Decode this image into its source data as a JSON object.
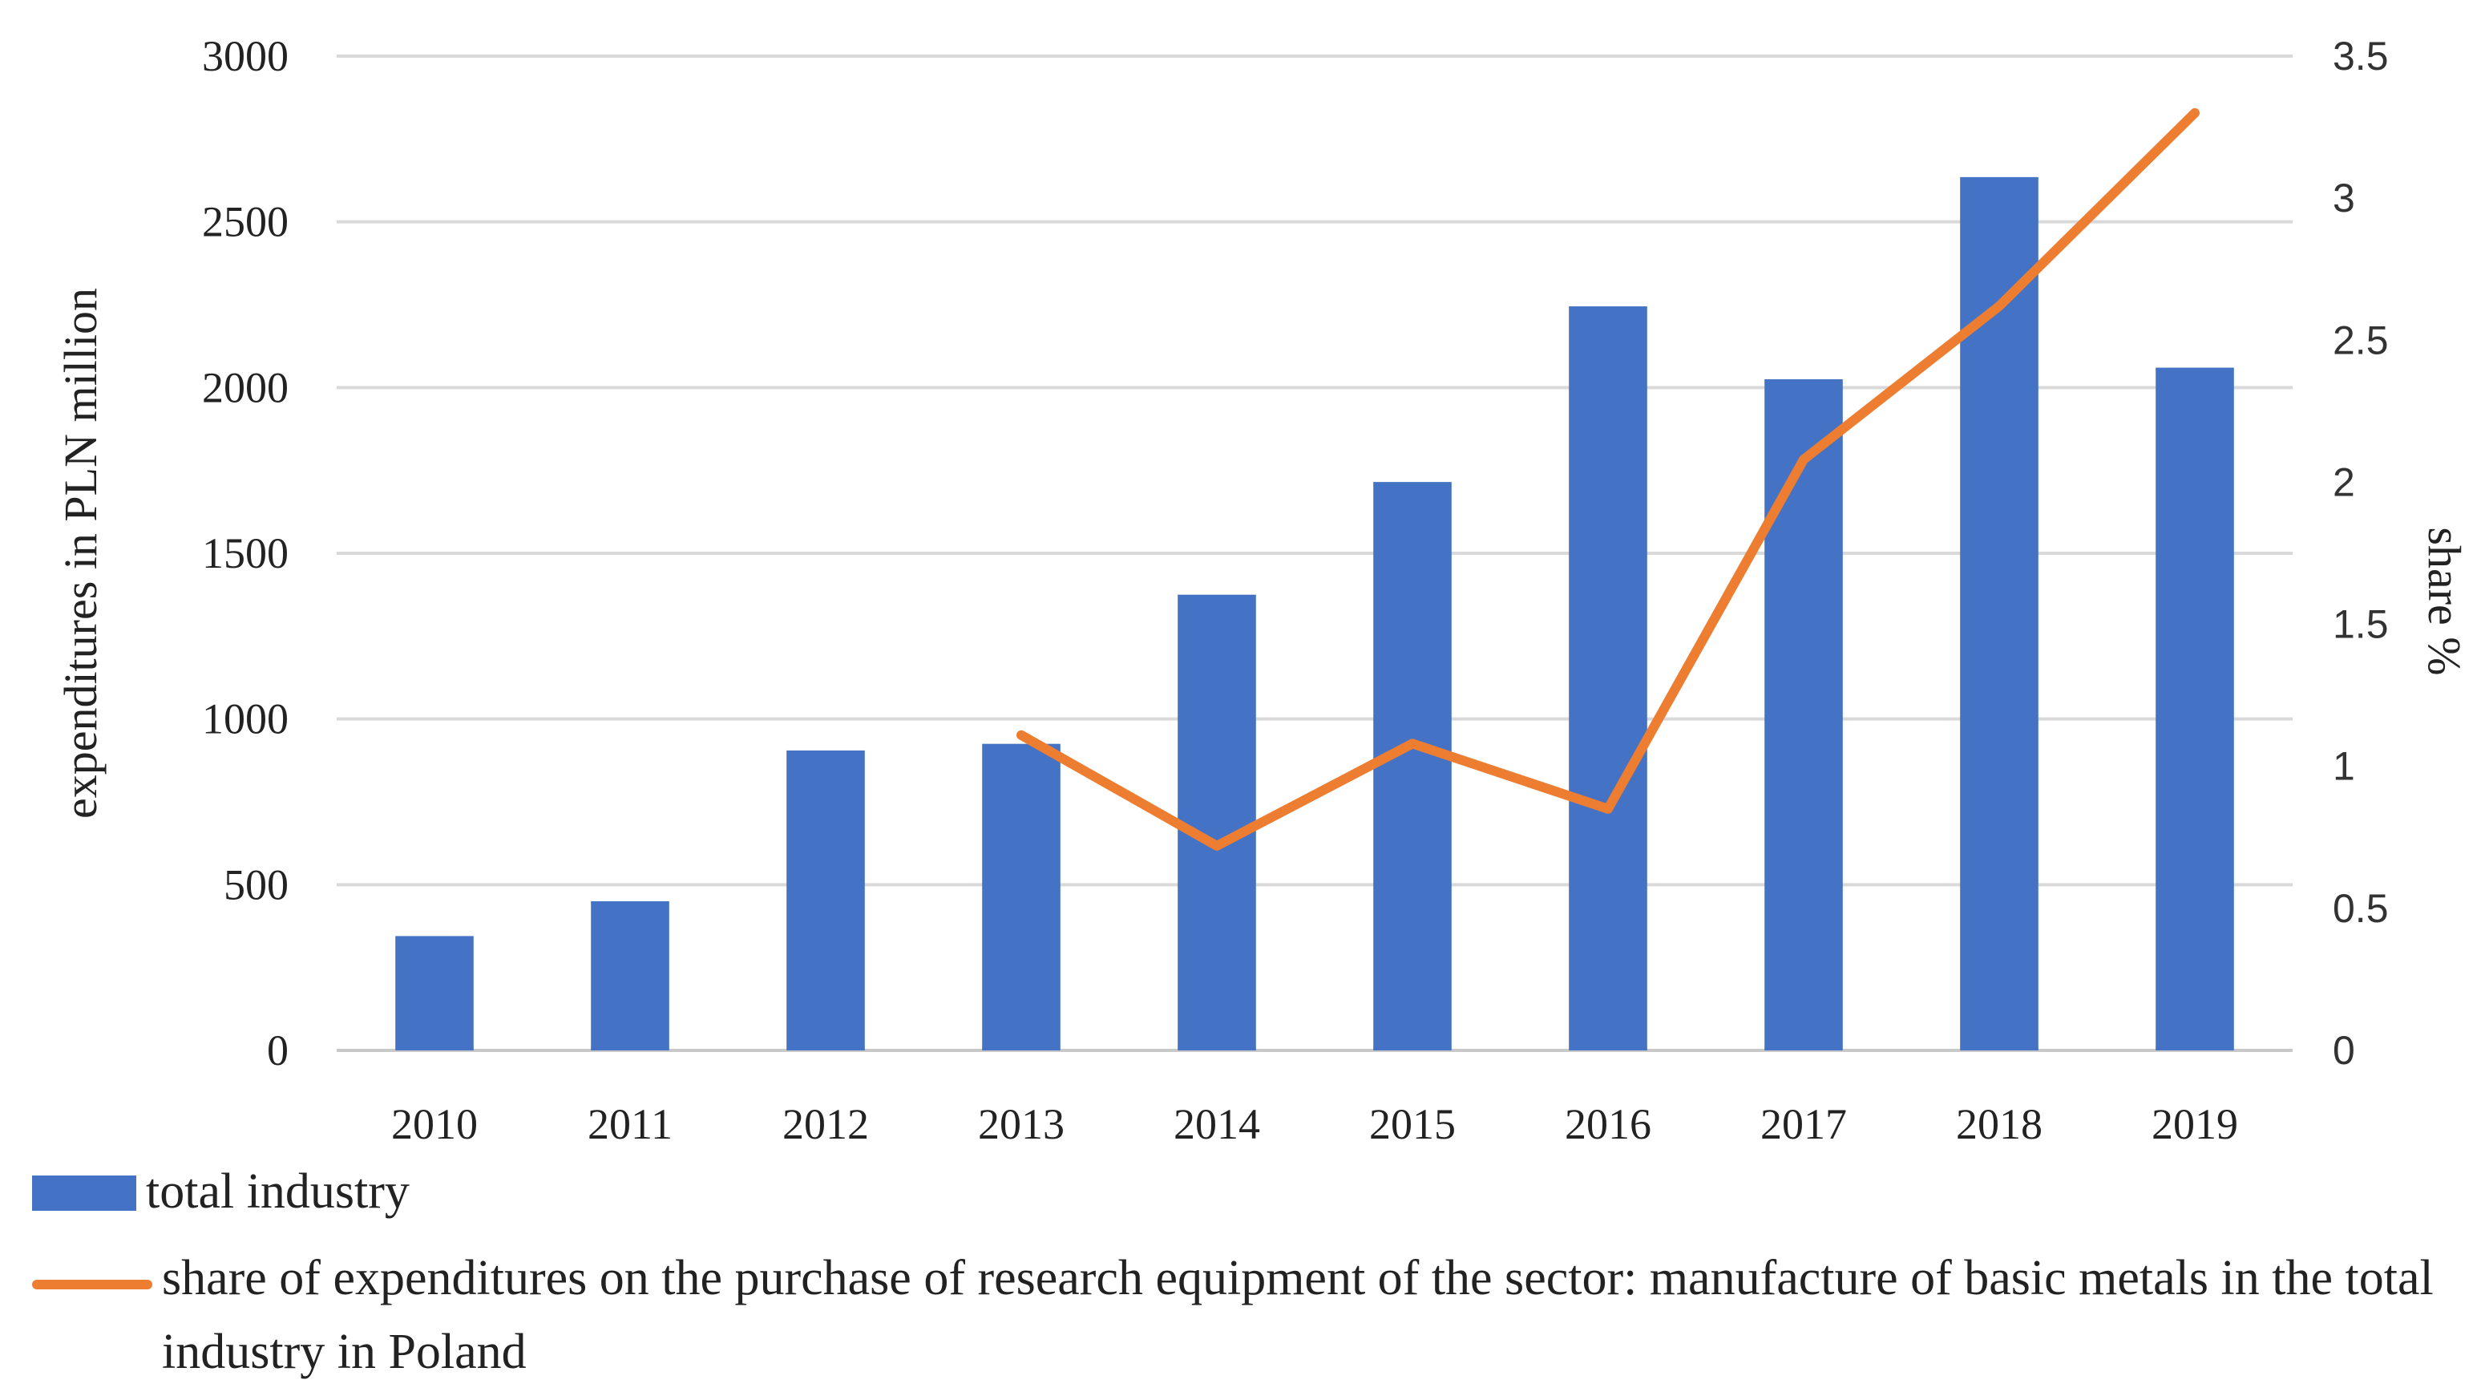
{
  "chart_data": {
    "type": "bar",
    "categories": [
      "2010",
      "2011",
      "2012",
      "2013",
      "2014",
      "2015",
      "2016",
      "2017",
      "2018",
      "2019"
    ],
    "series": [
      {
        "name": "total industry",
        "type": "bar",
        "axis": "left",
        "color": "#4472c4",
        "values": [
          345,
          450,
          905,
          925,
          1375,
          1715,
          2245,
          2025,
          2635,
          2060
        ]
      },
      {
        "name": "share of expenditures on the purchase of research equipment of the sector: manufacture of basic metals in the total industry in Poland",
        "type": "line",
        "axis": "right",
        "color": "#ed7d31",
        "values": [
          null,
          null,
          null,
          1.11,
          0.72,
          1.08,
          0.85,
          2.08,
          2.62,
          3.3
        ]
      }
    ],
    "ylabel": "expenditures  in PLN million",
    "y2label": "share %",
    "ylim": [
      0,
      3000
    ],
    "y2lim": [
      0,
      3.5
    ],
    "yticks": [
      "0",
      "500",
      "1000",
      "1500",
      "2000",
      "2500",
      "3000"
    ],
    "y2ticks": [
      "0",
      "0.5",
      "1",
      "1.5",
      "2",
      "2.5",
      "3",
      "3.5"
    ],
    "grid": true,
    "legend_position": "bottom-left"
  },
  "legend": {
    "bar_label": "total industry",
    "line_label": "share of expenditures on the purchase of research equipment of the sector: manufacture of basic metals in the total industry in Poland"
  }
}
